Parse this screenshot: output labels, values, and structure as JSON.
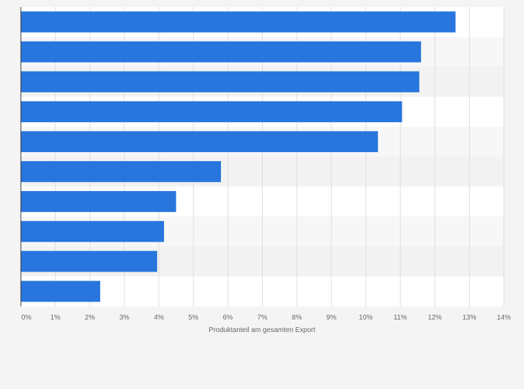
{
  "chart_data": {
    "type": "bar",
    "orientation": "horizontal",
    "categories": [
      "",
      "",
      "",
      "",
      "",
      "",
      "",
      "",
      "",
      ""
    ],
    "values": [
      12.6,
      11.6,
      11.55,
      11.05,
      10.35,
      5.8,
      4.5,
      4.15,
      3.95,
      2.3
    ],
    "xlabel": "Produktanteil am gesamten Export",
    "ylabel": "",
    "xlim": [
      0,
      14
    ],
    "x_ticks": [
      "0%",
      "1%",
      "2%",
      "3%",
      "4%",
      "5%",
      "6%",
      "7%",
      "8%",
      "9%",
      "10%",
      "11%",
      "12%",
      "13%",
      "14%"
    ],
    "grid": true,
    "bar_color": "#2876dd",
    "band_colors": [
      "#ffffff",
      "#f7f7f7",
      "#f2f2f2"
    ]
  }
}
